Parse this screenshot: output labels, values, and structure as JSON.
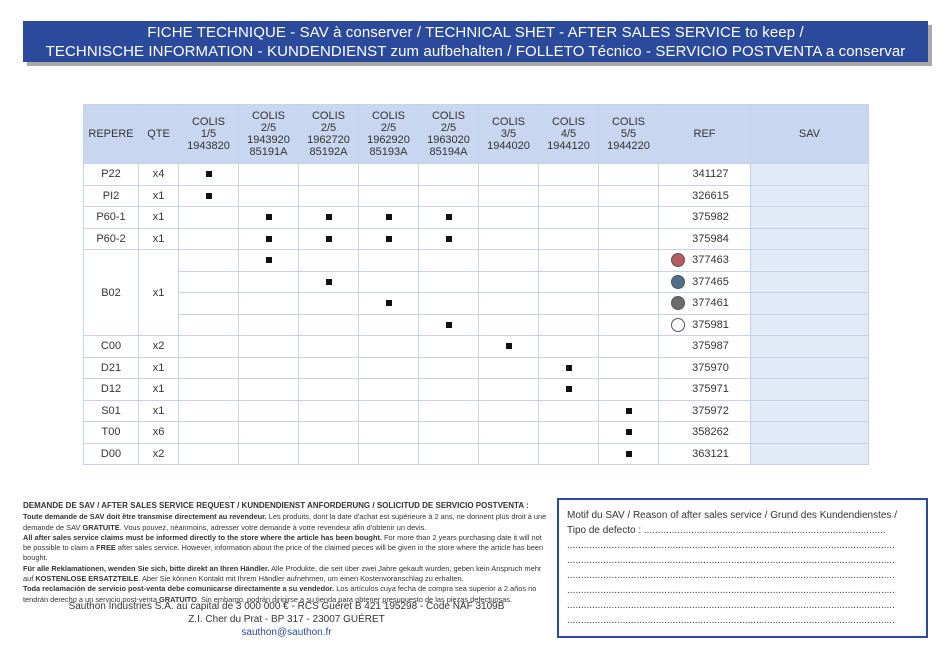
{
  "banner": {
    "line1": "FICHE TECHNIQUE - SAV à conserver / TECHNICAL SHET - AFTER SALES SERVICE to keep /",
    "line2": "TECHNISCHE INFORMATION - KUNDENDIENST zum aufbehalten  / FOLLETO Técnico - SERVICIO POSTVENTA a conservar"
  },
  "table": {
    "headers": {
      "repere": "REPERE",
      "qte": "QTE",
      "colis": [
        [
          "COLIS",
          "1/5",
          "1943820"
        ],
        [
          "COLIS",
          "2/5",
          "1943920",
          "85191A"
        ],
        [
          "COLIS",
          "2/5",
          "1962720",
          "85192A"
        ],
        [
          "COLIS",
          "2/5",
          "1962920",
          "85193A"
        ],
        [
          "COLIS",
          "2/5",
          "1963020",
          "85194A"
        ],
        [
          "COLIS",
          "3/5",
          "1944020"
        ],
        [
          "COLIS",
          "4/5",
          "1944120"
        ],
        [
          "COLIS",
          "5/5",
          "1944220"
        ]
      ],
      "ref": "REF",
      "sav": "SAV"
    },
    "rows": [
      {
        "repere": "P22",
        "qte": "x4",
        "marks": [
          0
        ],
        "ref": "341127",
        "swatch": ""
      },
      {
        "repere": "PI2",
        "qte": "x1",
        "marks": [
          0
        ],
        "ref": "326615",
        "swatch": ""
      },
      {
        "repere": "P60-1",
        "qte": "x1",
        "marks": [
          1,
          2,
          3,
          4
        ],
        "ref": "375982",
        "swatch": ""
      },
      {
        "repere": "P60-2",
        "qte": "x1",
        "marks": [
          1,
          2,
          3,
          4
        ],
        "ref": "375984",
        "swatch": ""
      },
      {
        "repere": "B02",
        "qte": "x1",
        "marks": [
          1
        ],
        "ref": "377463",
        "swatch": "#b85a62",
        "span": 4
      },
      {
        "repere": "",
        "qte": "",
        "marks": [
          2
        ],
        "ref": "377465",
        "swatch": "#4d6f8e",
        "cont": true
      },
      {
        "repere": "",
        "qte": "",
        "marks": [
          3
        ],
        "ref": "377461",
        "swatch": "#6b6b6b",
        "cont": true
      },
      {
        "repere": "",
        "qte": "",
        "marks": [
          4
        ],
        "ref": "375981",
        "swatch": "#ffffff",
        "cont": true
      },
      {
        "repere": "C00",
        "qte": "x2",
        "marks": [
          5
        ],
        "ref": "375987",
        "swatch": ""
      },
      {
        "repere": "D21",
        "qte": "x1",
        "marks": [
          6
        ],
        "ref": "375970",
        "swatch": ""
      },
      {
        "repere": "D12",
        "qte": "x1",
        "marks": [
          6
        ],
        "ref": "375971",
        "swatch": ""
      },
      {
        "repere": "S01",
        "qte": "x1",
        "marks": [
          7
        ],
        "ref": "375972",
        "swatch": ""
      },
      {
        "repere": "T00",
        "qte": "x6",
        "marks": [
          7
        ],
        "ref": "358262",
        "swatch": ""
      },
      {
        "repere": "D00",
        "qte": "x2",
        "marks": [
          7
        ],
        "ref": "363121",
        "swatch": ""
      }
    ]
  },
  "footer": {
    "heading": "DEMANDE DE SAV / AFTER SALES SERVICE REQUEST / KUNDENDIENST ANFORDERUNG / SOLICITUD DE SERVICIO POSTVENTA :",
    "paragraphs": [
      {
        "bold": "Toute demande de SAV doit être transmise directement au revendeur.",
        "text": " Les produits, dont la date d'achat est supérieure à 2 ans, ne donnent plus droit à une demande de SAV ",
        "bold2": "GRATUITE",
        "text2": ". Vous pouvez, néanmoins, adresser votre demande à votre revendeur afin d'obtenir un devis."
      },
      {
        "bold": "All after sales service claims must be informed directly to the store where the article has been bought.",
        "text": " For more than 2 years purchasing date it will not be possible to claim a ",
        "bold2": "FREE",
        "text2": " after sales service. However, information about the price of the claimed pieces will be given in the store where the article has been bought."
      },
      {
        "bold": "Für alle Reklamationen, wenden Sie sich, bitte direkt an Ihren Händler.",
        "text": " Alle Produkte, die seit über zwei Jahre gekauft wurden, geben kein Anspruch mehr auf ",
        "bold2": "KOSTENLOSE ERSATZTEILE",
        "text2": ". Aber Sie können Kontakt mit Ihrem Händler aufnehmen, um einen Kostenvoranschlag zu erhalten."
      },
      {
        "bold": "Toda reclamación de servicio post-venta debe comunicarse directamente a su vendedor.",
        "text": " Los artículos cuya fecha de compra sea superior a 2 años no tendrán derecho a un servicio post-venta ",
        "bold2": "GRATUITO",
        "text2": ". Sin embargo, podrán dirigirse a su tienda para obtener presupuesto de las piezas defectuosas."
      }
    ],
    "company": "Sauthon Industries S.A. au capital de 3 000 000 € - RCS Guéret B 421 195298 - Code NAF 3109B",
    "address": "Z.I. Cher du Prat - BP 317 - 23007 GUÉRET",
    "email": "sauthon@sauthon.fr"
  },
  "motif": {
    "line1": "Motif du SAV / Reason of after sales service / Grund des Kundendienstes /",
    "line2": "Tipo de defecto : .......................................................................................",
    "dots": "......................................................................................................................"
  }
}
